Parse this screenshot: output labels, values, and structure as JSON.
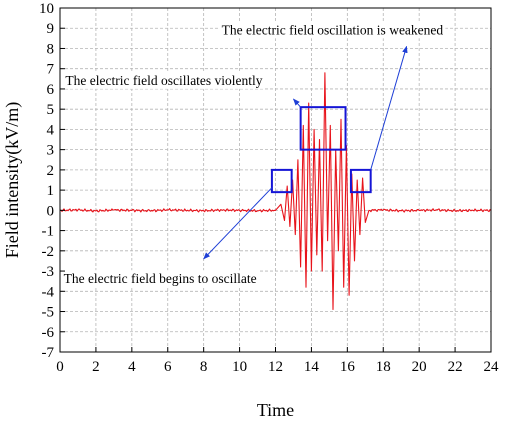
{
  "chart_data": {
    "type": "line",
    "xlabel": "Time",
    "ylabel": "Field intensity(kV/m)",
    "xlim": [
      0,
      24
    ],
    "ylim": [
      -7,
      10
    ],
    "x_ticks": [
      0,
      2,
      4,
      6,
      8,
      10,
      12,
      14,
      16,
      18,
      20,
      22,
      24
    ],
    "y_ticks": [
      -7,
      -6,
      -5,
      -4,
      -3,
      -2,
      -1,
      0,
      1,
      2,
      3,
      4,
      5,
      6,
      7,
      8,
      9,
      10
    ],
    "grid": true,
    "line_color": "#e8131b",
    "box_color": "#1515d6",
    "arrow_color": "#1e3fd6",
    "series": [
      {
        "x": [
          0,
          1,
          2,
          3,
          4,
          5,
          6,
          7,
          8,
          9,
          10,
          11,
          12,
          12.3,
          12.5,
          12.65,
          12.8,
          12.95,
          13.1,
          13.25,
          13.4,
          13.55,
          13.7,
          13.85,
          14.0,
          14.15,
          14.3,
          14.45,
          14.6,
          14.75,
          14.9,
          15.05,
          15.2,
          15.35,
          15.5,
          15.65,
          15.8,
          15.95,
          16.1,
          16.25,
          16.4,
          16.55,
          16.7,
          16.85,
          17.0,
          17.2,
          18,
          19,
          20,
          21,
          22,
          23,
          24
        ],
        "y": [
          0,
          0.02,
          -0.03,
          0.02,
          0,
          -0.02,
          0.02,
          0,
          -0.02,
          0.02,
          0,
          -0.02,
          0,
          0.3,
          -0.5,
          1.2,
          -0.8,
          1.5,
          -1.2,
          2.5,
          -2.8,
          4.2,
          -3.8,
          5.3,
          -3.0,
          4.0,
          -2.2,
          3.5,
          -3.0,
          6.8,
          -1.5,
          4.2,
          -4.9,
          3.0,
          -2.0,
          4.5,
          -3.8,
          3.2,
          -4.2,
          1.8,
          -2.5,
          1.5,
          -1.2,
          1.6,
          -0.6,
          0,
          0.02,
          -0.02,
          0,
          0.02,
          -0.02,
          0,
          0
        ]
      }
    ],
    "annotations": [
      {
        "text": "The electric field oscillation is weakened",
        "box": {
          "x0": 16.2,
          "x1": 17.3,
          "y0": 0.9,
          "y1": 2.0
        },
        "text_x": 9.0,
        "text_y": 8.7,
        "arrow_to": {
          "x": 19.3,
          "y": 8.1
        }
      },
      {
        "text": "The electric field oscillates violently",
        "box": {
          "x0": 13.4,
          "x1": 15.9,
          "y0": 3.0,
          "y1": 5.1
        },
        "text_x": 0.3,
        "text_y": 6.2,
        "arrow_to": {
          "x": 13.0,
          "y": 5.5
        }
      },
      {
        "text": "The electric field begins to oscillate",
        "box": {
          "x0": 11.8,
          "x1": 12.9,
          "y0": 0.9,
          "y1": 2.0
        },
        "text_x": 0.2,
        "text_y": -3.6,
        "arrow_to": {
          "x": 8.0,
          "y": -2.4
        }
      }
    ]
  }
}
